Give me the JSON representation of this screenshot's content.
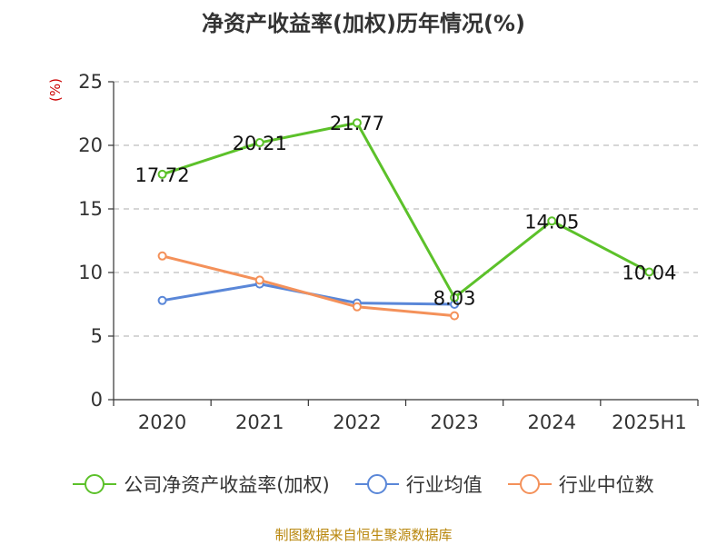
{
  "title": "净资产收益率(加权)历年情况(%)",
  "unit_label": "(%)",
  "source": "制图数据来自恒生聚源数据库",
  "chart_data": {
    "type": "line",
    "categories": [
      "2020",
      "2021",
      "2022",
      "2023",
      "2024",
      "2025H1"
    ],
    "ylim": [
      0,
      25
    ],
    "yticks": [
      0,
      5,
      10,
      15,
      20,
      25
    ],
    "grid": true,
    "legend_position": "bottom",
    "series": [
      {
        "name": "公司净资产收益率(加权)",
        "color": "#5cc12a",
        "values": [
          17.72,
          20.21,
          21.77,
          8.03,
          14.05,
          10.04
        ],
        "labels": [
          "17.72",
          "20.21",
          "21.77",
          "8.03",
          "14.05",
          "10.04"
        ]
      },
      {
        "name": "行业均值",
        "color": "#5a87d8",
        "values": [
          7.8,
          9.1,
          7.6,
          7.5,
          null,
          null
        ]
      },
      {
        "name": "行业中位数",
        "color": "#f4915a",
        "values": [
          11.3,
          9.4,
          7.3,
          6.6,
          null,
          null
        ]
      }
    ]
  }
}
